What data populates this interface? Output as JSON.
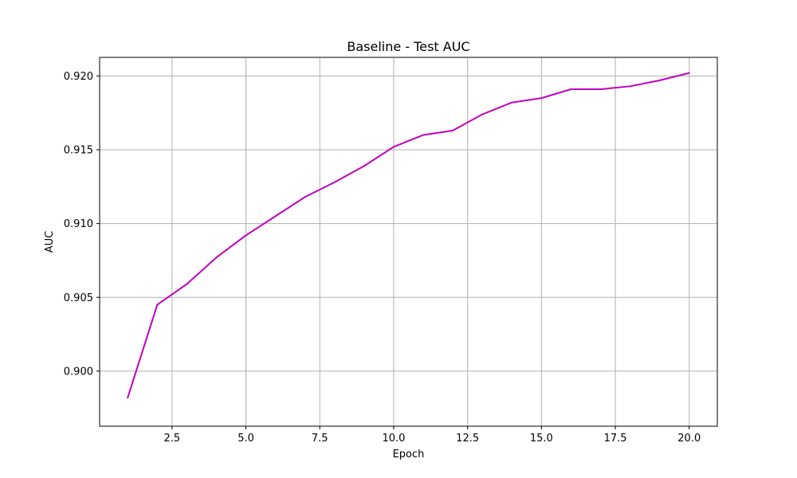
{
  "chart_data": {
    "type": "line",
    "title": "Baseline - Test AUC",
    "xlabel": "Epoch",
    "ylabel": "AUC",
    "xlim": [
      0.05,
      20.95
    ],
    "ylim": [
      0.89627,
      0.92126
    ],
    "grid": true,
    "x_ticks": [
      2.5,
      5.0,
      7.5,
      10.0,
      12.5,
      15.0,
      17.5,
      20.0
    ],
    "x_tick_labels": [
      "2.5",
      "5.0",
      "7.5",
      "10.0",
      "12.5",
      "15.0",
      "17.5",
      "20.0"
    ],
    "y_ticks": [
      0.9,
      0.905,
      0.91,
      0.915,
      0.92
    ],
    "y_tick_labels": [
      "0.900",
      "0.905",
      "0.910",
      "0.915",
      "0.920"
    ],
    "series": [
      {
        "color": "#bf00bf",
        "x": [
          1,
          2,
          3,
          4,
          5,
          6,
          7,
          8,
          9,
          10,
          11,
          12,
          13,
          14,
          15,
          16,
          17,
          18,
          19,
          20
        ],
        "y": [
          0.8982,
          0.9045,
          0.9059,
          0.9077,
          0.9092,
          0.9105,
          0.9118,
          0.9128,
          0.9139,
          0.9152,
          0.916,
          0.9163,
          0.9174,
          0.9182,
          0.9185,
          0.9191,
          0.9191,
          0.9193,
          0.9197,
          0.9202
        ]
      }
    ]
  }
}
